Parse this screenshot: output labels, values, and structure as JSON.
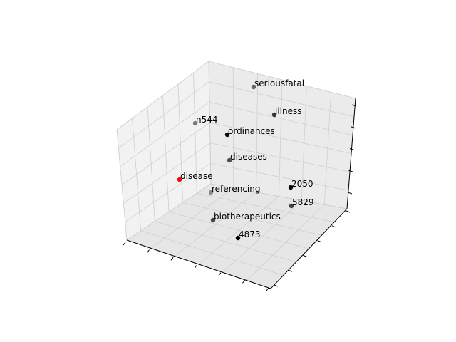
{
  "chart_data": {
    "type": "scatter",
    "projection": "3d",
    "title": "",
    "xlabel": "",
    "ylabel": "",
    "zlabel": "",
    "tick_labels_visible": false,
    "grid": true,
    "points": [
      {
        "label": "seriousfatal",
        "color": "#666666"
      },
      {
        "label": "illness",
        "color": "#333333"
      },
      {
        "label": "n544",
        "color": "#7a7a7a"
      },
      {
        "label": "ordinances",
        "color": "#0a0a0a"
      },
      {
        "label": "diseases",
        "color": "#4d4d4d"
      },
      {
        "label": "disease",
        "color": "#ff0000"
      },
      {
        "label": "referencing",
        "color": "#8a8a8a"
      },
      {
        "label": "2050",
        "color": "#000000"
      },
      {
        "label": "5829",
        "color": "#444444"
      },
      {
        "label": "biotherapeutics",
        "color": "#444444"
      },
      {
        "label": "4873",
        "color": "#000000"
      }
    ]
  }
}
